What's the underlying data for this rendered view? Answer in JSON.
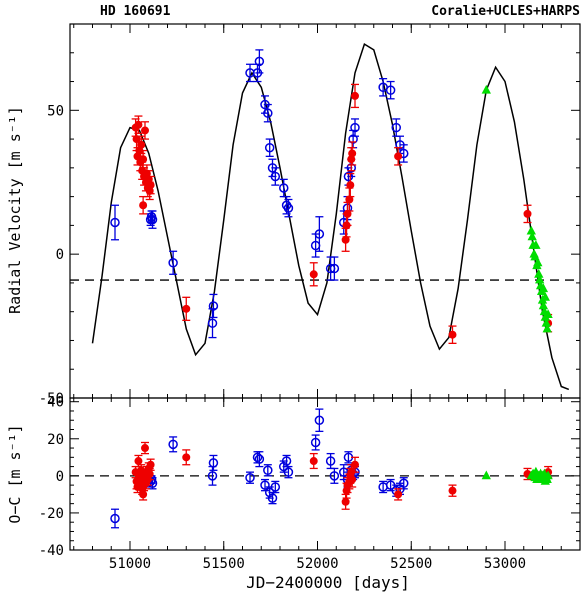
{
  "chart_data": [
    {
      "type": "scatter",
      "title_left": "HD 160691",
      "title_right": "Coralie+UCLES+HARPS",
      "xlabel": "",
      "ylabel": "Radial Velocity [m s⁻¹]",
      "xlim": [
        50680,
        53400
      ],
      "ylim": [
        -50,
        80
      ],
      "yticks": [
        -50,
        0,
        50
      ],
      "reference_line_y": -9,
      "series": [
        {
          "name": "Coralie",
          "color": "#0000dd",
          "marker": "open-circle",
          "points": [
            [
              50920,
              11,
              6
            ],
            [
              51110,
              12,
              2
            ],
            [
              51115,
              13,
              2
            ],
            [
              51120,
              12,
              3
            ],
            [
              51230,
              -3,
              4
            ],
            [
              51440,
              -24,
              5
            ],
            [
              51445,
              -18,
              4
            ],
            [
              51640,
              63,
              3
            ],
            [
              51680,
              63,
              3
            ],
            [
              51690,
              67,
              4
            ],
            [
              51720,
              52,
              3
            ],
            [
              51735,
              49,
              3
            ],
            [
              51745,
              37,
              3
            ],
            [
              51760,
              30,
              3
            ],
            [
              51775,
              27,
              3
            ],
            [
              51820,
              23,
              3
            ],
            [
              51835,
              17,
              3
            ],
            [
              51845,
              16,
              3
            ],
            [
              51990,
              3,
              4
            ],
            [
              52010,
              7,
              6
            ],
            [
              52070,
              -5,
              4
            ],
            [
              52090,
              -5,
              4
            ],
            [
              52140,
              11,
              4
            ],
            [
              52160,
              16,
              4
            ],
            [
              52165,
              27,
              3
            ],
            [
              52180,
              30,
              3
            ],
            [
              52190,
              40,
              3
            ],
            [
              52200,
              44,
              3
            ],
            [
              52350,
              58,
              3
            ],
            [
              52390,
              57,
              3
            ],
            [
              52420,
              44,
              3
            ],
            [
              52440,
              38,
              3
            ],
            [
              52460,
              35,
              3
            ]
          ]
        },
        {
          "name": "UCLES",
          "color": "#ee0000",
          "marker": "filled-circle",
          "points": [
            [
              51030,
              44,
              3
            ],
            [
              51035,
              40,
              4
            ],
            [
              51040,
              34,
              3
            ],
            [
              51045,
              45,
              3
            ],
            [
              51050,
              36,
              3
            ],
            [
              51055,
              32,
              3
            ],
            [
              51060,
              38,
              3
            ],
            [
              51065,
              29,
              3
            ],
            [
              51070,
              33,
              3
            ],
            [
              51075,
              27,
              3
            ],
            [
              51080,
              43,
              3
            ],
            [
              51085,
              25,
              3
            ],
            [
              51090,
              28,
              3
            ],
            [
              51095,
              23,
              3
            ],
            [
              51100,
              26,
              3
            ],
            [
              51105,
              22,
              3
            ],
            [
              51110,
              24,
              3
            ],
            [
              51070,
              17,
              3
            ],
            [
              51300,
              -19,
              4
            ],
            [
              51980,
              -7,
              4
            ],
            [
              52150,
              5,
              4
            ],
            [
              52155,
              10,
              4
            ],
            [
              52160,
              14,
              4
            ],
            [
              52170,
              19,
              4
            ],
            [
              52175,
              24,
              4
            ],
            [
              52180,
              33,
              4
            ],
            [
              52185,
              35,
              4
            ],
            [
              52200,
              55,
              4
            ],
            [
              52430,
              34,
              3
            ],
            [
              52720,
              -28,
              3
            ],
            [
              53120,
              14,
              3
            ],
            [
              53230,
              -24,
              3
            ]
          ]
        },
        {
          "name": "HARPS",
          "color": "#00dd00",
          "marker": "triangle",
          "points": [
            [
              52900,
              57,
              1
            ],
            [
              53140,
              8,
              1
            ],
            [
              53145,
              6,
              1
            ],
            [
              53150,
              3,
              1
            ],
            [
              53155,
              0,
              1
            ],
            [
              53160,
              -1,
              1
            ],
            [
              53165,
              3,
              1
            ],
            [
              53170,
              -4,
              1
            ],
            [
              53175,
              -3,
              1
            ],
            [
              53180,
              -7,
              1
            ],
            [
              53185,
              -9,
              1
            ],
            [
              53190,
              -11,
              1
            ],
            [
              53195,
              -13,
              1
            ],
            [
              53200,
              -16,
              1
            ],
            [
              53205,
              -18,
              1
            ],
            [
              53210,
              -20,
              1
            ],
            [
              53215,
              -22,
              1
            ],
            [
              53220,
              -24,
              1
            ],
            [
              53225,
              -26,
              1
            ],
            [
              53205,
              -12,
              1
            ],
            [
              53215,
              -15,
              1
            ],
            [
              53230,
              -21,
              1
            ]
          ]
        }
      ],
      "model_curve": {
        "color": "#000000",
        "points": [
          [
            50800,
            -31
          ],
          [
            50850,
            -8
          ],
          [
            50900,
            18
          ],
          [
            50950,
            37
          ],
          [
            51000,
            44
          ],
          [
            51050,
            43
          ],
          [
            51100,
            35
          ],
          [
            51150,
            22
          ],
          [
            51200,
            6
          ],
          [
            51250,
            -10
          ],
          [
            51300,
            -26
          ],
          [
            51350,
            -35
          ],
          [
            51400,
            -31
          ],
          [
            51450,
            -13
          ],
          [
            51500,
            12
          ],
          [
            51550,
            38
          ],
          [
            51600,
            56
          ],
          [
            51650,
            63
          ],
          [
            51700,
            58
          ],
          [
            51750,
            46
          ],
          [
            51800,
            30
          ],
          [
            51850,
            13
          ],
          [
            51900,
            -4
          ],
          [
            51950,
            -17
          ],
          [
            52000,
            -21
          ],
          [
            52050,
            -10
          ],
          [
            52100,
            14
          ],
          [
            52150,
            42
          ],
          [
            52200,
            63
          ],
          [
            52250,
            73
          ],
          [
            52300,
            71
          ],
          [
            52350,
            60
          ],
          [
            52400,
            45
          ],
          [
            52450,
            27
          ],
          [
            52500,
            8
          ],
          [
            52550,
            -10
          ],
          [
            52600,
            -25
          ],
          [
            52650,
            -33
          ],
          [
            52700,
            -29
          ],
          [
            52750,
            -12
          ],
          [
            52800,
            12
          ],
          [
            52850,
            38
          ],
          [
            52900,
            57
          ],
          [
            52950,
            65
          ],
          [
            53000,
            60
          ],
          [
            53050,
            46
          ],
          [
            53100,
            26
          ],
          [
            53150,
            3
          ],
          [
            53200,
            -20
          ],
          [
            53250,
            -36
          ],
          [
            53300,
            -46
          ],
          [
            53340,
            -47
          ]
        ]
      }
    },
    {
      "type": "scatter",
      "xlabel": "JD−2400000 [days]",
      "ylabel": "O−C [m s⁻¹]",
      "xlim": [
        50680,
        53400
      ],
      "ylim": [
        -40,
        42
      ],
      "xticks": [
        51000,
        51500,
        52000,
        52500,
        53000
      ],
      "yticks": [
        -40,
        -20,
        0,
        20,
        40
      ],
      "reference_line_y": 0,
      "series": [
        {
          "name": "Coralie",
          "color": "#0000dd",
          "marker": "open-circle",
          "points": [
            [
              50920,
              -23,
              5
            ],
            [
              51110,
              -3,
              3
            ],
            [
              51115,
              -2,
              2
            ],
            [
              51120,
              -4,
              3
            ],
            [
              51230,
              17,
              4
            ],
            [
              51440,
              0,
              5
            ],
            [
              51445,
              7,
              4
            ],
            [
              51640,
              -1,
              3
            ],
            [
              51680,
              10,
              3
            ],
            [
              51690,
              9,
              4
            ],
            [
              51720,
              -5,
              3
            ],
            [
              51735,
              3,
              3
            ],
            [
              51745,
              -9,
              3
            ],
            [
              51760,
              -12,
              3
            ],
            [
              51775,
              -6,
              3
            ],
            [
              51820,
              5,
              3
            ],
            [
              51835,
              8,
              3
            ],
            [
              51845,
              2,
              3
            ],
            [
              51990,
              18,
              4
            ],
            [
              52010,
              30,
              6
            ],
            [
              52070,
              8,
              4
            ],
            [
              52090,
              0,
              4
            ],
            [
              52140,
              2,
              4
            ],
            [
              52160,
              -2,
              4
            ],
            [
              52165,
              10,
              3
            ],
            [
              52180,
              3,
              3
            ],
            [
              52190,
              1,
              3
            ],
            [
              52200,
              2,
              3
            ],
            [
              52350,
              -6,
              3
            ],
            [
              52390,
              -5,
              3
            ],
            [
              52420,
              -8,
              3
            ],
            [
              52440,
              -7,
              3
            ],
            [
              52460,
              -4,
              3
            ]
          ]
        },
        {
          "name": "UCLES",
          "color": "#ee0000",
          "marker": "filled-circle",
          "points": [
            [
              51030,
              2,
              3
            ],
            [
              51035,
              -3,
              4
            ],
            [
              51040,
              -6,
              3
            ],
            [
              51045,
              8,
              3
            ],
            [
              51050,
              -1,
              3
            ],
            [
              51055,
              -4,
              3
            ],
            [
              51060,
              3,
              3
            ],
            [
              51065,
              -7,
              3
            ],
            [
              51070,
              0,
              3
            ],
            [
              51075,
              -5,
              3
            ],
            [
              51080,
              15,
              3
            ],
            [
              51085,
              -4,
              3
            ],
            [
              51090,
              2,
              3
            ],
            [
              51095,
              -2,
              3
            ],
            [
              51100,
              4,
              3
            ],
            [
              51105,
              1,
              3
            ],
            [
              51110,
              6,
              3
            ],
            [
              51070,
              -10,
              3
            ],
            [
              51300,
              10,
              4
            ],
            [
              51980,
              8,
              4
            ],
            [
              52150,
              -14,
              4
            ],
            [
              52155,
              -8,
              4
            ],
            [
              52160,
              -5,
              4
            ],
            [
              52170,
              -3,
              4
            ],
            [
              52175,
              0,
              4
            ],
            [
              52180,
              2,
              4
            ],
            [
              52185,
              -2,
              4
            ],
            [
              52200,
              6,
              4
            ],
            [
              52430,
              -10,
              3
            ],
            [
              52720,
              -8,
              3
            ],
            [
              53120,
              1,
              3
            ],
            [
              53230,
              2,
              3
            ]
          ]
        },
        {
          "name": "HARPS",
          "color": "#00dd00",
          "marker": "triangle",
          "points": [
            [
              52900,
              0,
              1
            ],
            [
              53140,
              0,
              1
            ],
            [
              53150,
              1,
              1
            ],
            [
              53160,
              -1,
              1
            ],
            [
              53165,
              2,
              1
            ],
            [
              53170,
              -2,
              1
            ],
            [
              53180,
              0,
              1
            ],
            [
              53185,
              -1,
              1
            ],
            [
              53190,
              1,
              1
            ],
            [
              53195,
              -2,
              1
            ],
            [
              53200,
              0,
              1
            ],
            [
              53205,
              -1,
              1
            ],
            [
              53210,
              1,
              1
            ],
            [
              53215,
              -3,
              1
            ],
            [
              53220,
              -1,
              1
            ],
            [
              53225,
              -2,
              1
            ],
            [
              53230,
              0,
              1
            ]
          ]
        }
      ]
    }
  ]
}
